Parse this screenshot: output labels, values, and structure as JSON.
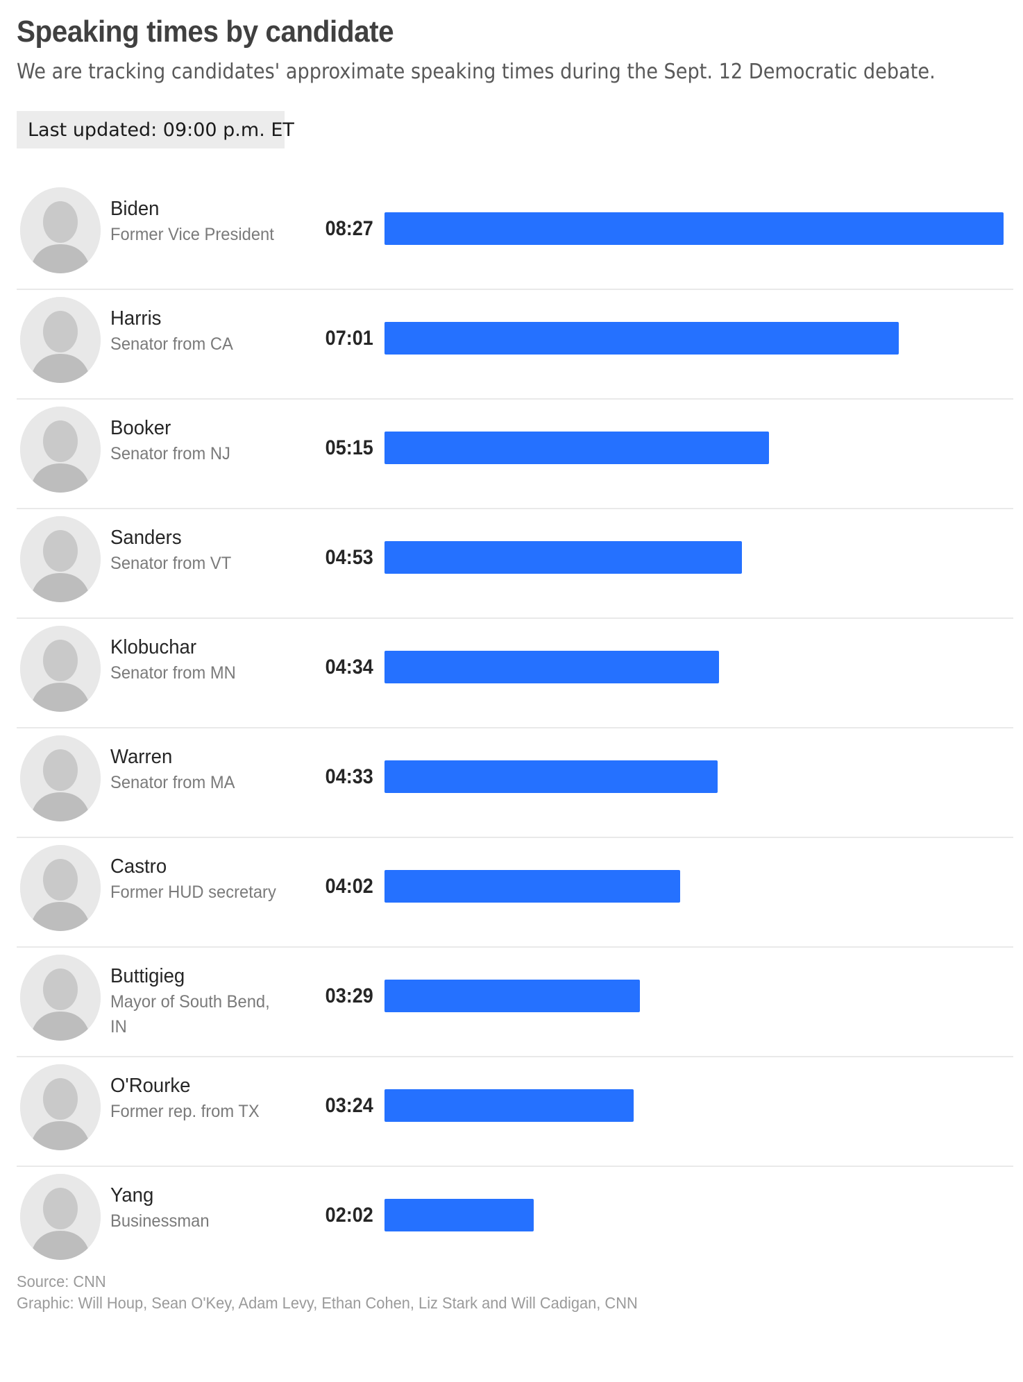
{
  "header": {
    "title": "Speaking times by candidate",
    "subtitle": "We are tracking candidates' approximate speaking times during the Sept. 12 Democratic debate.",
    "updated": "Last updated: 09:00 p.m. ET"
  },
  "colors": {
    "bar": "#2571ff"
  },
  "chart_data": {
    "type": "bar",
    "orientation": "horizontal",
    "title": "Speaking times by candidate",
    "subtitle": "We are tracking candidates' approximate speaking times during the Sept. 12 Democratic debate.",
    "unit": "seconds",
    "grid": false,
    "legend": "none",
    "xlim": [
      0,
      507
    ],
    "categories": [
      "Biden",
      "Harris",
      "Booker",
      "Sanders",
      "Klobuchar",
      "Warren",
      "Castro",
      "Buttigieg",
      "O'Rourke",
      "Yang"
    ],
    "roles": [
      "Former Vice President",
      "Senator from CA",
      "Senator from NJ",
      "Senator from VT",
      "Senator from MN",
      "Senator from MA",
      "Former HUD secretary",
      "Mayor of South Bend, IN",
      "Former rep. from TX",
      "Businessman"
    ],
    "labels": [
      "08:27",
      "07:01",
      "05:15",
      "04:53",
      "04:34",
      "04:33",
      "04:02",
      "03:29",
      "03:24",
      "02:02"
    ],
    "values": [
      507,
      421,
      315,
      293,
      274,
      273,
      242,
      209,
      204,
      122
    ]
  },
  "footer": {
    "source": "Source: CNN",
    "graphic": "Graphic: Will Houp, Sean O'Key, Adam Levy, Ethan Cohen, Liz Stark and Will Cadigan, CNN"
  }
}
